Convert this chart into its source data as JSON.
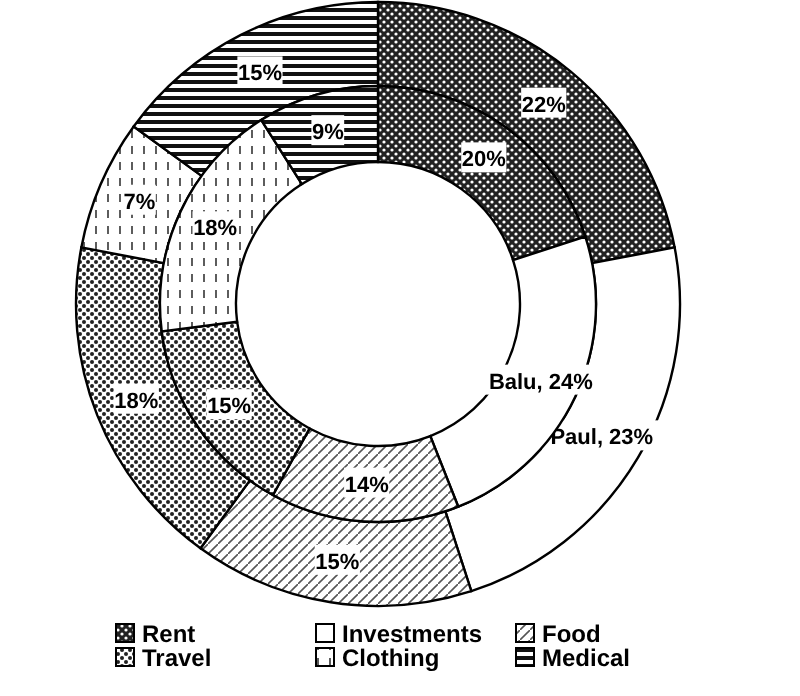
{
  "chart_data": {
    "type": "donut",
    "categories": [
      "Rent",
      "Investments",
      "Food",
      "Travel",
      "Clothing",
      "Medical"
    ],
    "series": [
      {
        "name": "Paul",
        "values": [
          22,
          23,
          15,
          18,
          7,
          15
        ],
        "value_labels": [
          "22%",
          ", 23%",
          "15%",
          "18%",
          "7%",
          "15%"
        ]
      },
      {
        "name": "Balu",
        "values": [
          20,
          24,
          14,
          15,
          18,
          9
        ],
        "value_labels": [
          "20%",
          ", 24%",
          "14%",
          "15%",
          "18%",
          "9%"
        ]
      }
    ],
    "legend": "bottom"
  }
}
